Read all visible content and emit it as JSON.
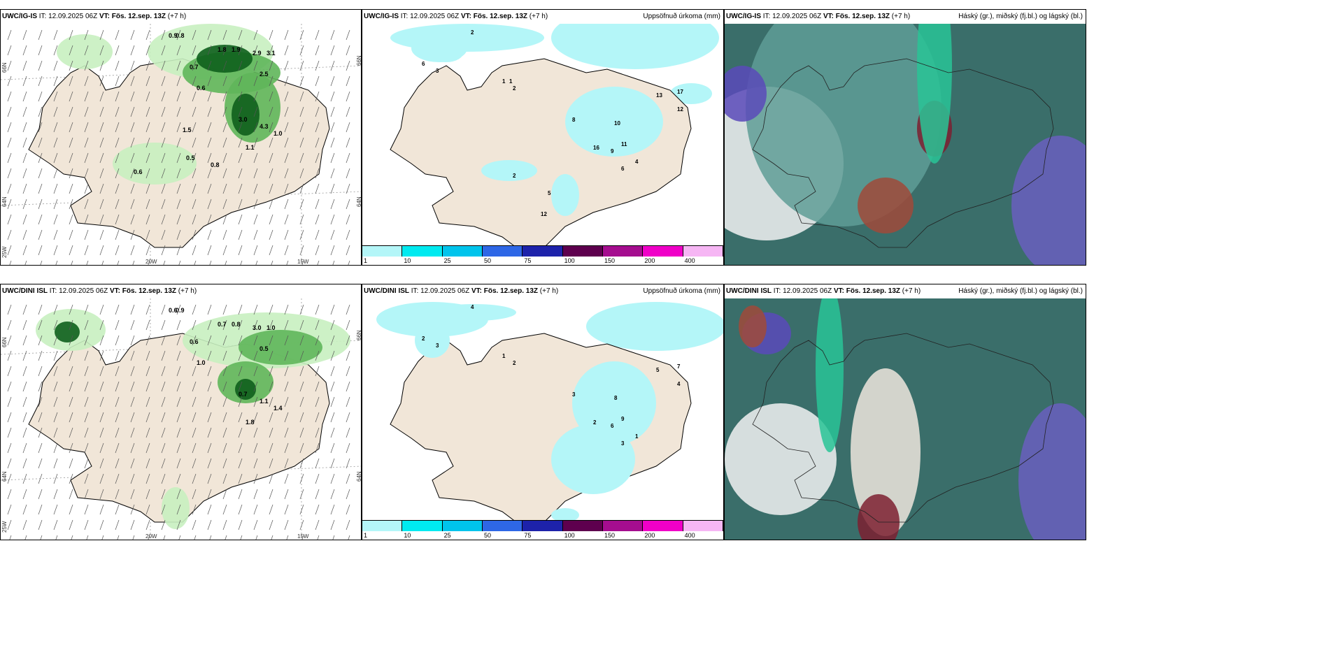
{
  "panels": [
    {
      "model": "UWC/IG-IS",
      "it_label": "IT:",
      "it": "12.09.2025 06Z",
      "vt_label": "VT: Fös. 12.sep. 13Z",
      "step": "(+7 h)",
      "right": ""
    },
    {
      "model": "UWC/IG-IS",
      "it_label": "IT:",
      "it": "12.09.2025 06Z",
      "vt_label": "VT: Fös. 12.sep. 13Z",
      "step": "(+7 h)",
      "right": "Uppsöfnuð úrkoma (mm)"
    },
    {
      "model": "UWC/IG-IS",
      "it_label": "IT:",
      "it": "12.09.2025 06Z",
      "vt_label": "VT: Fös. 12.sep. 13Z",
      "step": "(+7 h)",
      "right": "Háský (gr.), miðský (fj.bl.) og lágský (bl.)"
    },
    {
      "model": "UWC/DINI ISL",
      "it_label": "IT:",
      "it": "12.09.2025 06Z",
      "vt_label": "VT: Fös. 12.sep. 13Z",
      "step": "(+7 h)",
      "right": ""
    },
    {
      "model": "UWC/DINI ISL",
      "it_label": "IT:",
      "it": "12.09.2025 06Z",
      "vt_label": "VT: Fös. 12.sep. 13Z",
      "step": "(+7 h)",
      "right": "Uppsöfnuð úrkoma (mm)"
    },
    {
      "model": "UWC/DINI ISL",
      "it_label": "IT:",
      "it": "12.09.2025 06Z",
      "vt_label": "VT: Fös. 12.sep. 13Z",
      "step": "(+7 h)",
      "right": "Háský (gr.), miðský (fj.bl.) og lágský (bl.)"
    }
  ],
  "axis": {
    "lat_66": "66N",
    "lat_64": "64N",
    "lon_20": "20W",
    "lon_15": "15W",
    "lon_25": "25W"
  },
  "legend": {
    "ticks": [
      "1",
      "10",
      "25",
      "50",
      "75",
      "100",
      "150",
      "200",
      "400"
    ],
    "colors": [
      "#b4f6f8",
      "#00eaf0",
      "#00c4ec",
      "#2e67e6",
      "#1d22aa",
      "#5e004e",
      "#a50d8f",
      "#f000c8",
      "#f6b6f4"
    ]
  },
  "precip_values_top": [
    "0.9",
    "0.8",
    "1.8",
    "1.9",
    "2.9",
    "3.1",
    "2.5",
    "1.0",
    "0.7",
    "0.6",
    "3.0",
    "4.3",
    "1.1",
    "0.5",
    "0.8",
    "0.6",
    "1.5"
  ],
  "accum_values_top": [
    "2",
    "6",
    "3",
    "1",
    "2",
    "13",
    "17",
    "12",
    "8",
    "10",
    "11",
    "9",
    "16",
    "6",
    "4",
    "5",
    "12",
    "2",
    "1"
  ],
  "precip_values_bottom": [
    "0.6",
    "0.9",
    "0.7",
    "0.8",
    "3.0",
    "1.0",
    "0.5",
    "1.4",
    "0.6",
    "1.0",
    "0.7",
    "1.1",
    "1.8"
  ],
  "accum_values_bottom": [
    "4",
    "2",
    "3",
    "1",
    "2",
    "5",
    "7",
    "4",
    "3",
    "8",
    "9",
    "6",
    "2",
    "3",
    "1"
  ],
  "colors": {
    "land": "#f1e6d8",
    "precip_light": "#c8f0c0",
    "precip_mid": "#5fb65a",
    "precip_dark": "#0e5f1c",
    "accum_cyan": "#b4f6f8"
  }
}
